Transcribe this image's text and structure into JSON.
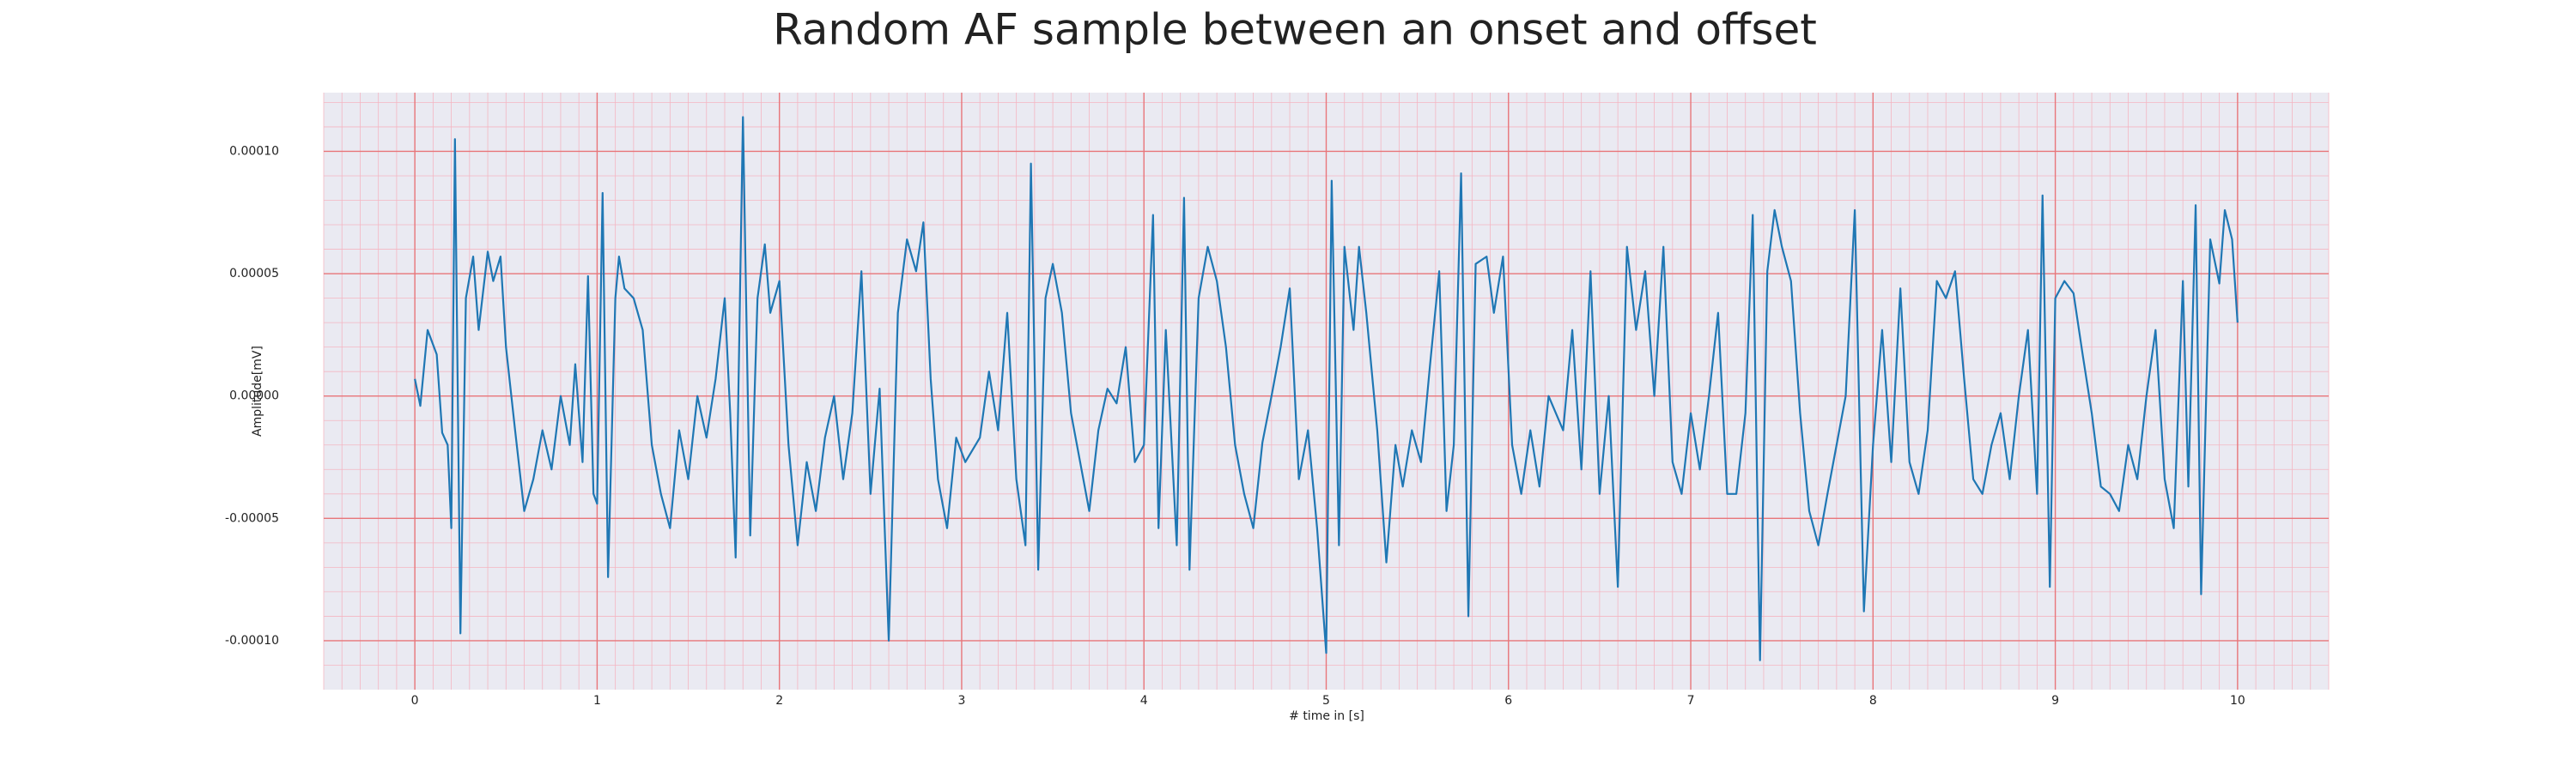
{
  "chart_data": {
    "type": "line",
    "title": "Random AF sample between an onset and offset",
    "x_label": "# time in [s]",
    "y_label": "Amplitude[mV]",
    "xlim": [
      -0.5,
      10.5
    ],
    "ylim": [
      -0.00012,
      0.000124
    ],
    "xticks": [
      0,
      1,
      2,
      3,
      4,
      5,
      6,
      7,
      8,
      9,
      10
    ],
    "yticks": [
      {
        "value": -0.0001,
        "label": "-0.00010"
      },
      {
        "value": -5e-05,
        "label": "-0.00005"
      },
      {
        "value": 0,
        "label": "0.00000"
      },
      {
        "value": 5e-05,
        "label": "0.00005"
      },
      {
        "value": 0.0001,
        "label": "0.00010"
      }
    ],
    "grid": true,
    "minor_grid": true,
    "series": [
      {
        "color": "#1f77b4",
        "x": [
          0,
          0.03,
          0.07,
          0.12,
          0.15,
          0.18,
          0.2,
          0.22,
          0.25,
          0.28,
          0.32,
          0.35,
          0.4,
          0.43,
          0.47,
          0.5,
          0.55,
          0.6,
          0.65,
          0.7,
          0.75,
          0.8,
          0.85,
          0.88,
          0.92,
          0.95,
          0.98,
          1.0,
          1.03,
          1.06,
          1.1,
          1.12,
          1.15,
          1.2,
          1.25,
          1.3,
          1.35,
          1.4,
          1.45,
          1.5,
          1.55,
          1.6,
          1.65,
          1.7,
          1.73,
          1.76,
          1.8,
          1.84,
          1.88,
          1.92,
          1.95,
          2.0,
          2.05,
          2.1,
          2.15,
          2.2,
          2.25,
          2.3,
          2.35,
          2.4,
          2.45,
          2.5,
          2.55,
          2.6,
          2.65,
          2.7,
          2.75,
          2.79,
          2.83,
          2.87,
          2.92,
          2.97,
          3.02,
          3.1,
          3.15,
          3.2,
          3.25,
          3.3,
          3.35,
          3.38,
          3.42,
          3.46,
          3.5,
          3.55,
          3.6,
          3.65,
          3.7,
          3.75,
          3.8,
          3.85,
          3.9,
          3.95,
          4.0,
          4.05,
          4.08,
          4.12,
          4.18,
          4.22,
          4.25,
          4.3,
          4.35,
          4.4,
          4.45,
          4.5,
          4.55,
          4.6,
          4.65,
          4.7,
          4.75,
          4.8,
          4.85,
          4.9,
          4.95,
          5.0,
          5.03,
          5.07,
          5.1,
          5.15,
          5.18,
          5.22,
          5.28,
          5.33,
          5.38,
          5.42,
          5.47,
          5.52,
          5.57,
          5.62,
          5.66,
          5.7,
          5.74,
          5.78,
          5.82,
          5.88,
          5.92,
          5.97,
          6.02,
          6.07,
          6.12,
          6.17,
          6.22,
          6.3,
          6.35,
          6.4,
          6.45,
          6.5,
          6.55,
          6.6,
          6.65,
          6.7,
          6.75,
          6.8,
          6.85,
          6.9,
          6.95,
          7.0,
          7.05,
          7.1,
          7.15,
          7.2,
          7.25,
          7.3,
          7.34,
          7.38,
          7.42,
          7.46,
          7.5,
          7.55,
          7.6,
          7.65,
          7.7,
          7.75,
          7.8,
          7.85,
          7.9,
          7.95,
          8.0,
          8.05,
          8.1,
          8.15,
          8.2,
          8.25,
          8.3,
          8.35,
          8.4,
          8.45,
          8.5,
          8.55,
          8.6,
          8.65,
          8.7,
          8.75,
          8.8,
          8.85,
          8.9,
          8.93,
          8.97,
          9.0,
          9.05,
          9.1,
          9.15,
          9.2,
          9.25,
          9.3,
          9.35,
          9.4,
          9.45,
          9.5,
          9.55,
          9.6,
          9.65,
          9.7,
          9.73,
          9.77,
          9.8,
          9.85,
          9.9,
          9.93,
          9.97,
          10.0
        ],
        "values": [
          7e-06,
          -4e-06,
          2.7e-05,
          1.7e-05,
          -1.5e-05,
          -2e-05,
          -5.4e-05,
          0.000105,
          -9.7e-05,
          4e-05,
          5.7e-05,
          2.7e-05,
          5.9e-05,
          4.7e-05,
          5.7e-05,
          2e-05,
          -1.4e-05,
          -4.7e-05,
          -3.4e-05,
          -1.4e-05,
          -3e-05,
          0,
          -2e-05,
          1.3e-05,
          -2.7e-05,
          4.9e-05,
          -4e-05,
          -4.4e-05,
          8.3e-05,
          -7.4e-05,
          4e-05,
          5.7e-05,
          4.4e-05,
          4e-05,
          2.7e-05,
          -2e-05,
          -4e-05,
          -5.4e-05,
          -1.4e-05,
          -3.4e-05,
          0,
          -1.7e-05,
          7e-06,
          4e-05,
          -7e-06,
          -6.6e-05,
          0.000114,
          -5.7e-05,
          4e-05,
          6.2e-05,
          3.4e-05,
          4.7e-05,
          -2e-05,
          -6.1e-05,
          -2.7e-05,
          -4.7e-05,
          -1.7e-05,
          0,
          -3.4e-05,
          -7e-06,
          5.1e-05,
          -4e-05,
          3e-06,
          -0.0001,
          3.4e-05,
          6.4e-05,
          5.1e-05,
          7.1e-05,
          7e-06,
          -3.4e-05,
          -5.4e-05,
          -1.7e-05,
          -2.7e-05,
          -1.7e-05,
          1e-05,
          -1.4e-05,
          3.4e-05,
          -3.4e-05,
          -6.1e-05,
          9.5e-05,
          -7.1e-05,
          4e-05,
          5.4e-05,
          3.4e-05,
          -7e-06,
          -2.7e-05,
          -4.7e-05,
          -1.4e-05,
          3e-06,
          -3e-06,
          2e-05,
          -2.7e-05,
          -2e-05,
          7.4e-05,
          -5.4e-05,
          2.7e-05,
          -6.1e-05,
          8.1e-05,
          -7.1e-05,
          4e-05,
          6.1e-05,
          4.7e-05,
          2e-05,
          -2e-05,
          -4e-05,
          -5.4e-05,
          -1.9e-05,
          0,
          2e-05,
          4.4e-05,
          -3.4e-05,
          -1.4e-05,
          -5.4e-05,
          -0.000105,
          8.8e-05,
          -6.1e-05,
          6.1e-05,
          2.7e-05,
          6.1e-05,
          3.4e-05,
          -1.4e-05,
          -6.8e-05,
          -2e-05,
          -3.7e-05,
          -1.4e-05,
          -2.7e-05,
          1.3e-05,
          5.1e-05,
          -4.7e-05,
          -2e-05,
          9.1e-05,
          -9e-05,
          5.4e-05,
          5.7e-05,
          3.4e-05,
          5.7e-05,
          -2e-05,
          -4e-05,
          -1.4e-05,
          -3.7e-05,
          0,
          -1.4e-05,
          2.7e-05,
          -3e-05,
          5.1e-05,
          -4e-05,
          0,
          -7.8e-05,
          6.1e-05,
          2.7e-05,
          5.1e-05,
          0,
          6.1e-05,
          -2.7e-05,
          -4e-05,
          -7e-06,
          -3e-05,
          0,
          3.4e-05,
          -4e-05,
          -4e-05,
          -7e-06,
          7.4e-05,
          -0.000108,
          5.1e-05,
          7.6e-05,
          6.1e-05,
          4.7e-05,
          -7e-06,
          -4.7e-05,
          -6.1e-05,
          -4e-05,
          -2e-05,
          0,
          7.6e-05,
          -8.8e-05,
          -2e-05,
          2.7e-05,
          -2.7e-05,
          4.4e-05,
          -2.7e-05,
          -4e-05,
          -1.4e-05,
          4.7e-05,
          4e-05,
          5.1e-05,
          7e-06,
          -3.4e-05,
          -4e-05,
          -2e-05,
          -7e-06,
          -3.4e-05,
          0,
          2.7e-05,
          -4e-05,
          8.2e-05,
          -7.8e-05,
          4e-05,
          4.7e-05,
          4.2e-05,
          1.7e-05,
          -7e-06,
          -3.7e-05,
          -4e-05,
          -4.7e-05,
          -2e-05,
          -3.4e-05,
          0,
          2.7e-05,
          -3.4e-05,
          -5.4e-05,
          4.7e-05,
          -3.7e-05,
          7.8e-05,
          -8.1e-05,
          6.4e-05,
          4.6e-05,
          7.6e-05,
          6.4e-05,
          3e-05
        ]
      }
    ]
  }
}
